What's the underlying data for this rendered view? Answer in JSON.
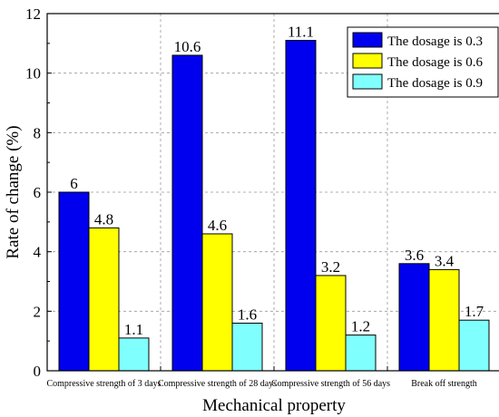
{
  "chart_data": {
    "type": "bar",
    "title": "",
    "xlabel": "Mechanical property",
    "ylabel": "Rate of change (%)",
    "ylim": [
      0,
      12
    ],
    "yticks": [
      0,
      2,
      4,
      6,
      8,
      10,
      12
    ],
    "grid": true,
    "legend_position": "top-right",
    "categories": [
      "Compressive strength of 3 days",
      "Compressive strength of 28 days",
      "Compressive strength of 56 days",
      "Break off strength"
    ],
    "series": [
      {
        "name": "The dosage is 0.3",
        "color": "#0000ee",
        "values": [
          6,
          10.6,
          11.1,
          3.6
        ],
        "labels": [
          "6",
          "10.6",
          "11.1",
          "3.6"
        ]
      },
      {
        "name": "The dosage is 0.6",
        "color": "#ffff00",
        "values": [
          4.8,
          4.6,
          3.2,
          3.4
        ],
        "labels": [
          "4.8",
          "4.6",
          "3.2",
          "3.4"
        ]
      },
      {
        "name": "The dosage is 0.9",
        "color": "#80ffff",
        "values": [
          1.1,
          1.6,
          1.2,
          1.7
        ],
        "labels": [
          "1.1",
          "1.6",
          "1.2",
          "1.7"
        ]
      }
    ]
  }
}
